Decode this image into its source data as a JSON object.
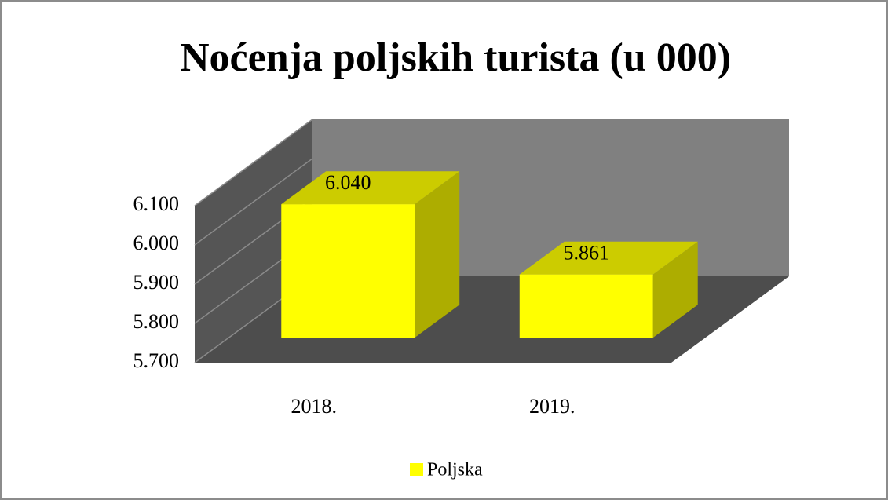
{
  "chart_data": {
    "type": "bar3d",
    "title": "Noćenja poljskih turista (u 000)",
    "categories": [
      "2018.",
      "2019."
    ],
    "series": [
      {
        "name": "Poljska",
        "color": "#ffff00",
        "values": [
          6040,
          5861
        ],
        "value_labels": [
          "6.040",
          "5.861"
        ]
      }
    ],
    "ylim": [
      5700,
      6100
    ],
    "yticks": [
      {
        "value": 5700,
        "label": "5.700"
      },
      {
        "value": 5800,
        "label": "5.800"
      },
      {
        "value": 5900,
        "label": "5.900"
      },
      {
        "value": 6000,
        "label": "6.000"
      },
      {
        "value": 6100,
        "label": "6.100"
      }
    ],
    "grid": true,
    "legend": "bottom"
  }
}
